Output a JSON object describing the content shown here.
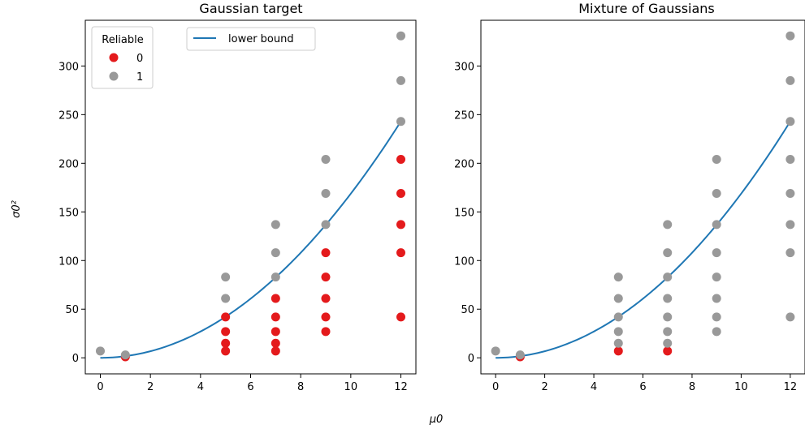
{
  "figure": {
    "xlabel": "μ0",
    "ylabel": "σ0²"
  },
  "colors": {
    "reliable_0": "#e41a1c",
    "reliable_1": "#999999",
    "lower_bound": "#1f77b4"
  },
  "chart_data": [
    {
      "type": "scatter",
      "title": "Gaussian target",
      "xlabel": "μ0",
      "ylabel": "σ0²",
      "xlim": [
        -0.6,
        12.6
      ],
      "ylim": [
        -16.5,
        347
      ],
      "xticks": [
        0,
        2,
        4,
        6,
        8,
        10,
        12
      ],
      "yticks": [
        0,
        50,
        100,
        150,
        200,
        250,
        300
      ],
      "grid": false,
      "legend": {
        "title": "Reliable",
        "placement": "top-left",
        "entries": [
          {
            "label": "0",
            "color": "#e41a1c"
          },
          {
            "label": "1",
            "color": "#999999"
          }
        ]
      },
      "line_legend": {
        "placement": "top-center",
        "entries": [
          {
            "label": "lower bound",
            "color": "#1f77b4"
          }
        ]
      },
      "lower_bound": {
        "name": "lower bound",
        "formula": "y = 27/16 * x^2",
        "x_range": [
          0,
          12
        ]
      },
      "series": [
        {
          "name": "0",
          "color": "#e41a1c",
          "points": [
            [
              1,
              1
            ],
            [
              5,
              7
            ],
            [
              5,
              15
            ],
            [
              5,
              27
            ],
            [
              5,
              42
            ],
            [
              7,
              7
            ],
            [
              7,
              15
            ],
            [
              7,
              27
            ],
            [
              7,
              42
            ],
            [
              7,
              61
            ],
            [
              9,
              27
            ],
            [
              9,
              42
            ],
            [
              9,
              61
            ],
            [
              9,
              83
            ],
            [
              9,
              108
            ],
            [
              12,
              42
            ],
            [
              12,
              108
            ],
            [
              12,
              137
            ],
            [
              12,
              169
            ],
            [
              12,
              204
            ]
          ]
        },
        {
          "name": "1",
          "color": "#999999",
          "points": [
            [
              0,
              7
            ],
            [
              1,
              3
            ],
            [
              5,
              61
            ],
            [
              5,
              83
            ],
            [
              7,
              83
            ],
            [
              7,
              108
            ],
            [
              7,
              137
            ],
            [
              9,
              137
            ],
            [
              9,
              169
            ],
            [
              9,
              204
            ],
            [
              12,
              243
            ],
            [
              12,
              285
            ],
            [
              12,
              331
            ]
          ]
        }
      ]
    },
    {
      "type": "scatter",
      "title": "Mixture of Gaussians",
      "xlabel": "μ0",
      "ylabel": "σ0²",
      "xlim": [
        -0.6,
        12.6
      ],
      "ylim": [
        -16.5,
        347
      ],
      "xticks": [
        0,
        2,
        4,
        6,
        8,
        10,
        12
      ],
      "yticks": [
        0,
        50,
        100,
        150,
        200,
        250,
        300
      ],
      "grid": false,
      "lower_bound": {
        "name": "lower bound",
        "formula": "y = 27/16 * x^2",
        "x_range": [
          0,
          12
        ]
      },
      "series": [
        {
          "name": "0",
          "color": "#e41a1c",
          "points": [
            [
              1,
              1
            ],
            [
              5,
              7
            ],
            [
              7,
              7
            ]
          ]
        },
        {
          "name": "1",
          "color": "#999999",
          "points": [
            [
              0,
              7
            ],
            [
              1,
              3
            ],
            [
              5,
              15
            ],
            [
              5,
              27
            ],
            [
              5,
              42
            ],
            [
              5,
              61
            ],
            [
              5,
              83
            ],
            [
              7,
              15
            ],
            [
              7,
              27
            ],
            [
              7,
              42
            ],
            [
              7,
              61
            ],
            [
              7,
              83
            ],
            [
              7,
              108
            ],
            [
              7,
              137
            ],
            [
              9,
              27
            ],
            [
              9,
              42
            ],
            [
              9,
              61
            ],
            [
              9,
              83
            ],
            [
              9,
              108
            ],
            [
              9,
              137
            ],
            [
              9,
              169
            ],
            [
              9,
              204
            ],
            [
              12,
              42
            ],
            [
              12,
              108
            ],
            [
              12,
              137
            ],
            [
              12,
              169
            ],
            [
              12,
              204
            ],
            [
              12,
              243
            ],
            [
              12,
              285
            ],
            [
              12,
              331
            ]
          ]
        }
      ]
    }
  ]
}
